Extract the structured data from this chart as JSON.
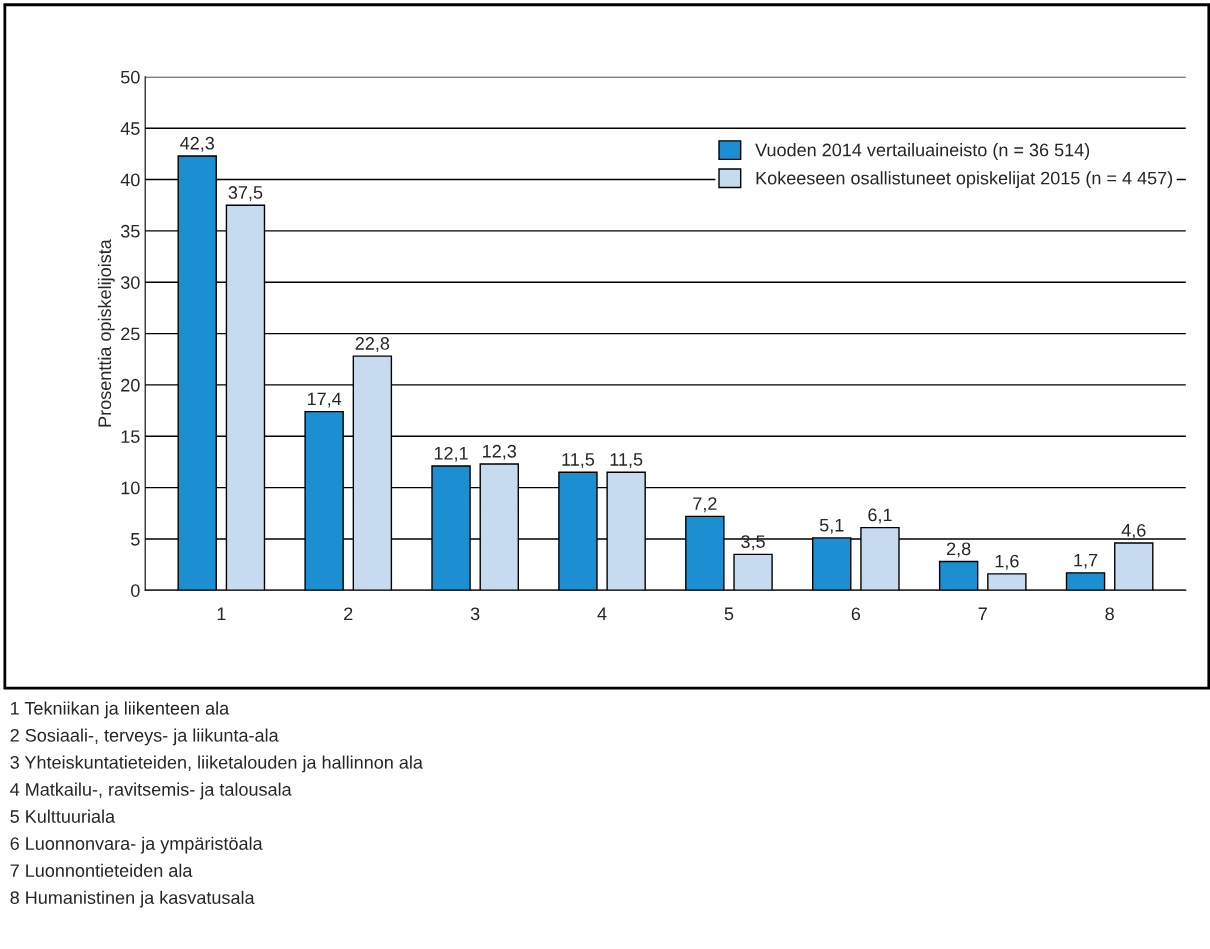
{
  "chart_data": {
    "type": "bar",
    "ylabel": "Prosenttia opiskelijoista",
    "categories": [
      "1",
      "2",
      "3",
      "4",
      "5",
      "6",
      "7",
      "8"
    ],
    "series": [
      {
        "name": "Vuoden 2014 vertailuaineisto (n = 36 514)",
        "color": "#1b8fd1",
        "values": [
          42.3,
          17.4,
          12.1,
          11.5,
          7.2,
          5.1,
          2.8,
          1.7
        ],
        "value_labels": [
          "42,3",
          "17,4",
          "12,1",
          "11,5",
          "7,2",
          "5,1",
          "2,8",
          "1,7"
        ]
      },
      {
        "name": "Kokeeseen osallistuneet opiskelijat 2015 (n = 4 457)",
        "color": "#c6dbf0",
        "values": [
          37.5,
          22.8,
          12.3,
          11.5,
          3.5,
          6.1,
          1.6,
          4.6
        ],
        "value_labels": [
          "37,5",
          "22,8",
          "12,3",
          "11,5",
          "3,5",
          "6,1",
          "1,6",
          "4,6"
        ]
      }
    ],
    "ylim": [
      0,
      50
    ],
    "yticks": [
      0,
      5,
      10,
      15,
      20,
      25,
      30,
      35,
      40,
      45,
      50
    ],
    "grid": "y",
    "legend": "top right",
    "annotations": [
      "1 Tekniikan ja liikenteen ala",
      "2 Sosiaali-, terveys- ja liikunta-ala",
      "3 Yhteiskuntatieteiden, liiketalouden ja hallinnon ala",
      "4 Matkailu-, ravitsemis- ja talousala",
      "5 Kulttuuriala",
      "6 Luonnonvara- ja ympäristöala",
      "7 Luonnontieteiden ala",
      "8 Humanistinen ja kasvatusala"
    ]
  }
}
